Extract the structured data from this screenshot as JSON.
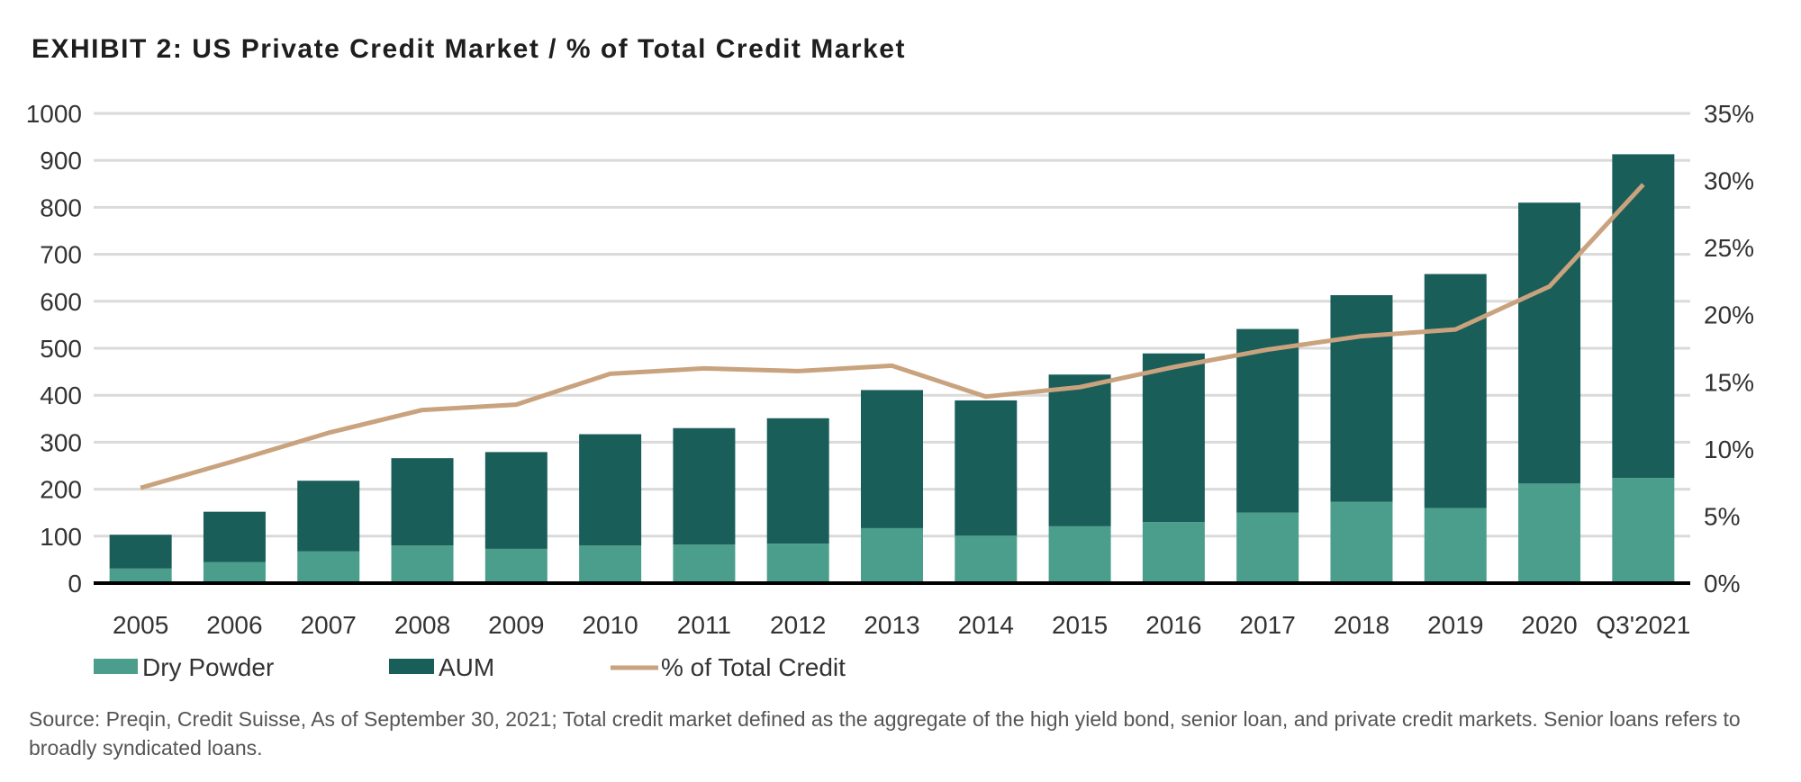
{
  "chart_data": {
    "type": "bar",
    "stacked": true,
    "title": "EXHIBIT 2: US Private Credit Market / % of Total Credit Market",
    "categories": [
      "2005",
      "2006",
      "2007",
      "2008",
      "2009",
      "2010",
      "2011",
      "2012",
      "2013",
      "2014",
      "2015",
      "2016",
      "2017",
      "2018",
      "2019",
      "2020",
      "Q3'2021"
    ],
    "series": [
      {
        "name": "Dry Powder",
        "type": "bar",
        "axis": "left",
        "color": "#4b9e8b",
        "values": [
          31,
          45,
          68,
          80,
          73,
          80,
          82,
          84,
          117,
          101,
          121,
          130,
          150,
          173,
          160,
          212,
          224
        ]
      },
      {
        "name": "AUM",
        "type": "bar",
        "axis": "left",
        "color": "#1a5e5a",
        "values": [
          72,
          107,
          150,
          186,
          206,
          237,
          248,
          267,
          294,
          288,
          323,
          359,
          391,
          440,
          498,
          598,
          689
        ]
      },
      {
        "name": "% of Total Credit",
        "type": "line",
        "axis": "right",
        "color": "#c9a27e",
        "values": [
          7.1,
          9.1,
          11.2,
          12.9,
          13.3,
          15.6,
          16.0,
          15.8,
          16.2,
          13.9,
          14.6,
          16.1,
          17.4,
          18.4,
          18.9,
          22.1,
          29.7
        ]
      }
    ],
    "ylim": [
      0,
      1000
    ],
    "yticks": [
      "0",
      "100",
      "200",
      "300",
      "400",
      "500",
      "600",
      "700",
      "800",
      "900",
      "1000"
    ],
    "y2lim": [
      0,
      35
    ],
    "y2ticks": [
      "0%",
      "5%",
      "10%",
      "15%",
      "20%",
      "25%",
      "30%",
      "35%"
    ],
    "xlabel": "",
    "ylabel": "",
    "grid": true,
    "legend_position": "bottom",
    "source": "Source: Preqin, Credit Suisse, As of September 30, 2021; Total credit market defined as the aggregate of the high yield bond, senior loan, and private credit markets. Senior loans refers to broadly syndicated loans."
  }
}
